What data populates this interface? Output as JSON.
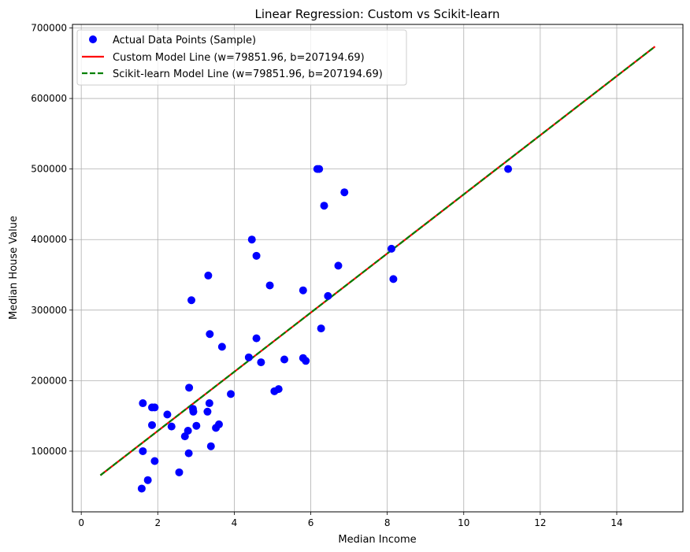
{
  "chart_data": {
    "type": "scatter",
    "title": "Linear Regression: Custom vs Scikit-learn",
    "xlabel": "Median Income",
    "ylabel": "Median House Value",
    "xlim": [
      -0.23,
      15.73
    ],
    "ylim": [
      14000,
      705000
    ],
    "xticks": [
      0,
      2,
      4,
      6,
      8,
      10,
      12,
      14
    ],
    "yticks": [
      100000,
      200000,
      300000,
      400000,
      500000,
      600000,
      700000
    ],
    "grid": true,
    "legend_position": "top-left",
    "series": [
      {
        "name": "Actual Data Points (Sample)",
        "kind": "scatter",
        "color": "#0000ff",
        "points": [
          [
            1.58,
            47000
          ],
          [
            1.61,
            100000
          ],
          [
            1.61,
            168000
          ],
          [
            1.74,
            59000
          ],
          [
            1.85,
            137000
          ],
          [
            1.85,
            162000
          ],
          [
            1.92,
            162000
          ],
          [
            1.92,
            86000
          ],
          [
            2.25,
            152000
          ],
          [
            2.36,
            135000
          ],
          [
            2.56,
            70000
          ],
          [
            2.71,
            121000
          ],
          [
            2.79,
            129000
          ],
          [
            2.81,
            97000
          ],
          [
            2.82,
            190000
          ],
          [
            2.88,
            314000
          ],
          [
            2.92,
            160000
          ],
          [
            2.93,
            156000
          ],
          [
            3.01,
            136000
          ],
          [
            3.3,
            156000
          ],
          [
            3.32,
            349000
          ],
          [
            3.35,
            168000
          ],
          [
            3.36,
            266000
          ],
          [
            3.39,
            107000
          ],
          [
            3.52,
            133000
          ],
          [
            3.6,
            138000
          ],
          [
            3.68,
            248000
          ],
          [
            3.91,
            181000
          ],
          [
            4.38,
            233000
          ],
          [
            4.46,
            400000
          ],
          [
            4.58,
            377000
          ],
          [
            4.58,
            260000
          ],
          [
            4.7,
            226000
          ],
          [
            4.93,
            335000
          ],
          [
            5.05,
            185000
          ],
          [
            5.16,
            188000
          ],
          [
            5.31,
            230000
          ],
          [
            5.8,
            328000
          ],
          [
            5.8,
            232000
          ],
          [
            5.87,
            228000
          ],
          [
            6.17,
            500000
          ],
          [
            6.22,
            500000
          ],
          [
            6.27,
            274000
          ],
          [
            6.35,
            448000
          ],
          [
            6.45,
            320000
          ],
          [
            6.72,
            363000
          ],
          [
            6.88,
            467000
          ],
          [
            8.11,
            387000
          ],
          [
            8.16,
            344000
          ],
          [
            11.16,
            500000
          ]
        ]
      },
      {
        "name": "Custom Model Line (w=79851.96, b=207194.69)",
        "kind": "line",
        "color": "#ff0000",
        "dash": "solid",
        "x": [
          0.5,
          15.0
        ],
        "y": [
          65830,
          673630
        ]
      },
      {
        "name": "Scikit-learn Model Line (w=79851.96, b=207194.69)",
        "kind": "line",
        "color": "#008000",
        "dash": "dashed",
        "x": [
          0.5,
          15.0
        ],
        "y": [
          65830,
          673630
        ]
      }
    ]
  }
}
